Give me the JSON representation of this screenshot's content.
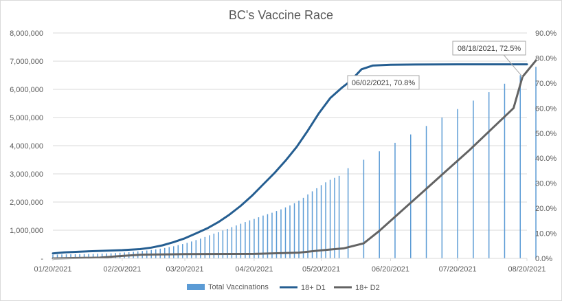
{
  "chart_data": {
    "type": "bar-line-combo",
    "title": "BC's Vaccine Race",
    "left_axis": {
      "min": 0,
      "max": 8000000,
      "step": 1000000,
      "tick_labels": [
        "-",
        "1,000,000",
        "2,000,000",
        "3,000,000",
        "4,000,000",
        "5,000,000",
        "6,000,000",
        "7,000,000",
        "8,000,000"
      ]
    },
    "right_axis": {
      "min": 0,
      "max": 0.9,
      "step": 0.1,
      "tick_labels": [
        "0.0%",
        "10.0%",
        "20.0%",
        "30.0%",
        "40.0%",
        "50.0%",
        "60.0%",
        "70.0%",
        "80.0%",
        "90.0%"
      ]
    },
    "x_axis": {
      "start": "2021-01-20",
      "end": "2021-08-20",
      "tick_labels": [
        "01/20/2021",
        "02/20/2021",
        "03/20/2021",
        "04/20/2021",
        "05/20/2021",
        "06/20/2021",
        "07/20/2021",
        "08/20/2021"
      ],
      "tick_dates": [
        "2021-01-20",
        "2021-02-20",
        "2021-03-20",
        "2021-04-20",
        "2021-05-20",
        "2021-06-20",
        "2021-07-20",
        "2021-08-20"
      ]
    },
    "gridlines": true,
    "legend_position": "bottom",
    "colors": {
      "bars": "#5b9bd5",
      "d1": "#255e91",
      "d2": "#636363",
      "grid": "#d9d9d9",
      "text": "#595959"
    },
    "series": [
      {
        "name": "Total Vaccinations",
        "type": "bar",
        "axis": "left",
        "points": [
          [
            "2021-01-20",
            130000
          ],
          [
            "2021-01-22",
            135000
          ],
          [
            "2021-01-24",
            140000
          ],
          [
            "2021-01-26",
            143000
          ],
          [
            "2021-01-28",
            146000
          ],
          [
            "2021-01-30",
            148000
          ],
          [
            "2021-02-01",
            150000
          ],
          [
            "2021-02-03",
            153000
          ],
          [
            "2021-02-05",
            156000
          ],
          [
            "2021-02-07",
            160000
          ],
          [
            "2021-02-09",
            165000
          ],
          [
            "2021-02-11",
            170000
          ],
          [
            "2021-02-13",
            175000
          ],
          [
            "2021-02-15",
            180000
          ],
          [
            "2021-02-17",
            190000
          ],
          [
            "2021-02-19",
            200000
          ],
          [
            "2021-02-21",
            210000
          ],
          [
            "2021-02-23",
            220000
          ],
          [
            "2021-02-25",
            235000
          ],
          [
            "2021-02-27",
            250000
          ],
          [
            "2021-03-01",
            265000
          ],
          [
            "2021-03-03",
            280000
          ],
          [
            "2021-03-05",
            300000
          ],
          [
            "2021-03-07",
            320000
          ],
          [
            "2021-03-09",
            345000
          ],
          [
            "2021-03-11",
            370000
          ],
          [
            "2021-03-13",
            400000
          ],
          [
            "2021-03-15",
            430000
          ],
          [
            "2021-03-17",
            470000
          ],
          [
            "2021-03-19",
            510000
          ],
          [
            "2021-03-21",
            550000
          ],
          [
            "2021-03-23",
            600000
          ],
          [
            "2021-03-25",
            650000
          ],
          [
            "2021-03-27",
            700000
          ],
          [
            "2021-03-29",
            760000
          ],
          [
            "2021-03-31",
            820000
          ],
          [
            "2021-04-02",
            880000
          ],
          [
            "2021-04-04",
            930000
          ],
          [
            "2021-04-06",
            990000
          ],
          [
            "2021-04-08",
            1050000
          ],
          [
            "2021-04-10",
            1110000
          ],
          [
            "2021-04-12",
            1170000
          ],
          [
            "2021-04-14",
            1230000
          ],
          [
            "2021-04-16",
            1290000
          ],
          [
            "2021-04-18",
            1350000
          ],
          [
            "2021-04-20",
            1400000
          ],
          [
            "2021-04-22",
            1460000
          ],
          [
            "2021-04-24",
            1520000
          ],
          [
            "2021-04-26",
            1570000
          ],
          [
            "2021-04-28",
            1620000
          ],
          [
            "2021-04-30",
            1680000
          ],
          [
            "2021-05-02",
            1740000
          ],
          [
            "2021-05-04",
            1810000
          ],
          [
            "2021-05-06",
            1880000
          ],
          [
            "2021-05-08",
            1960000
          ],
          [
            "2021-05-10",
            2050000
          ],
          [
            "2021-05-12",
            2150000
          ],
          [
            "2021-05-14",
            2270000
          ],
          [
            "2021-05-16",
            2380000
          ],
          [
            "2021-05-18",
            2490000
          ],
          [
            "2021-05-20",
            2600000
          ],
          [
            "2021-05-22",
            2700000
          ],
          [
            "2021-05-24",
            2790000
          ],
          [
            "2021-05-26",
            2860000
          ],
          [
            "2021-05-28",
            2930000
          ],
          [
            "2021-06-01",
            3200000
          ],
          [
            "2021-06-08",
            3500000
          ],
          [
            "2021-06-15",
            3800000
          ],
          [
            "2021-06-22",
            4100000
          ],
          [
            "2021-06-29",
            4400000
          ],
          [
            "2021-07-06",
            4700000
          ],
          [
            "2021-07-13",
            5000000
          ],
          [
            "2021-07-20",
            5300000
          ],
          [
            "2021-07-27",
            5600000
          ],
          [
            "2021-08-03",
            5900000
          ],
          [
            "2021-08-10",
            6200000
          ],
          [
            "2021-08-17",
            6500000
          ],
          [
            "2021-08-24",
            6800000
          ]
        ]
      },
      {
        "name": "18+ D1",
        "type": "line",
        "axis": "right",
        "points": [
          [
            "2021-01-20",
            0.02
          ],
          [
            "2021-01-25",
            0.024
          ],
          [
            "2021-02-01",
            0.027
          ],
          [
            "2021-02-10",
            0.03
          ],
          [
            "2021-02-20",
            0.033
          ],
          [
            "2021-02-28",
            0.037
          ],
          [
            "2021-03-05",
            0.043
          ],
          [
            "2021-03-10",
            0.052
          ],
          [
            "2021-03-15",
            0.065
          ],
          [
            "2021-03-20",
            0.08
          ],
          [
            "2021-03-25",
            0.1
          ],
          [
            "2021-03-30",
            0.12
          ],
          [
            "2021-04-04",
            0.145
          ],
          [
            "2021-04-09",
            0.175
          ],
          [
            "2021-04-14",
            0.21
          ],
          [
            "2021-04-19",
            0.25
          ],
          [
            "2021-04-24",
            0.295
          ],
          [
            "2021-04-29",
            0.34
          ],
          [
            "2021-05-04",
            0.39
          ],
          [
            "2021-05-09",
            0.445
          ],
          [
            "2021-05-14",
            0.51
          ],
          [
            "2021-05-19",
            0.58
          ],
          [
            "2021-05-24",
            0.64
          ],
          [
            "2021-05-29",
            0.68
          ],
          [
            "2021-06-02",
            0.708
          ],
          [
            "2021-06-07",
            0.755
          ],
          [
            "2021-06-12",
            0.77
          ],
          [
            "2021-06-20",
            0.773
          ],
          [
            "2021-07-01",
            0.774
          ],
          [
            "2021-07-20",
            0.775
          ],
          [
            "2021-08-20",
            0.775
          ]
        ]
      },
      {
        "name": "18+ D2",
        "type": "line",
        "axis": "right",
        "points": [
          [
            "2021-01-20",
            0.0
          ],
          [
            "2021-02-10",
            0.003
          ],
          [
            "2021-02-20",
            0.01
          ],
          [
            "2021-03-01",
            0.015
          ],
          [
            "2021-03-20",
            0.017
          ],
          [
            "2021-04-20",
            0.018
          ],
          [
            "2021-05-10",
            0.023
          ],
          [
            "2021-05-20",
            0.032
          ],
          [
            "2021-05-30",
            0.04
          ],
          [
            "2021-06-08",
            0.06
          ],
          [
            "2021-06-15",
            0.11
          ],
          [
            "2021-06-25",
            0.19
          ],
          [
            "2021-07-05",
            0.27
          ],
          [
            "2021-07-15",
            0.35
          ],
          [
            "2021-07-25",
            0.43
          ],
          [
            "2021-08-04",
            0.515
          ],
          [
            "2021-08-14",
            0.6
          ],
          [
            "2021-08-18",
            0.725
          ],
          [
            "2021-08-24",
            0.79
          ]
        ]
      }
    ],
    "annotations": [
      {
        "text": "06/02/2021, 70.8%",
        "series": "18+ D1",
        "x": "2021-06-02",
        "y": 0.708
      },
      {
        "text": "08/18/2021, 72.5%",
        "series": "18+ D2",
        "x": "2021-08-18",
        "y": 0.725
      }
    ]
  }
}
